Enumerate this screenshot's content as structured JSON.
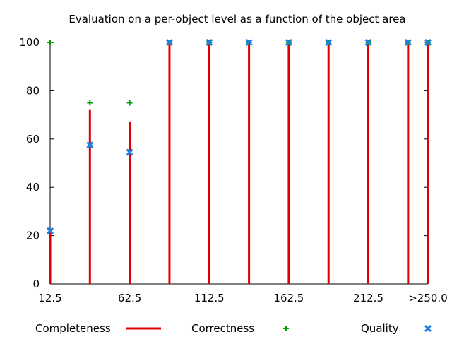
{
  "chart_data": {
    "type": "bar",
    "title": "Evaluation on a per-object level as a function of the object area",
    "x": [
      12.5,
      37.5,
      62.5,
      87.5,
      112.5,
      137.5,
      162.5,
      187.5,
      212.5,
      237.5,
      250
    ],
    "x_tick_labels": [
      {
        "x": 12.5,
        "label": "12.5"
      },
      {
        "x": 62.5,
        "label": "62.5"
      },
      {
        "x": 112.5,
        "label": "112.5"
      },
      {
        "x": 162.5,
        "label": "162.5"
      },
      {
        "x": 212.5,
        "label": "212.5"
      },
      {
        "x": 250,
        "label": ">250.0"
      }
    ],
    "y_ticks": [
      0,
      20,
      40,
      60,
      80,
      100
    ],
    "xlim": [
      12.5,
      250
    ],
    "ylim": [
      0,
      100
    ],
    "grid": false,
    "legend_position": "bottom",
    "series": [
      {
        "name": "Completeness",
        "kind": "impulse",
        "color": "#e00000",
        "values": [
          22,
          72,
          67,
          100,
          100,
          100,
          100,
          100,
          100,
          100,
          100
        ]
      },
      {
        "name": "Correctness",
        "kind": "point-plus",
        "color": "#00a000",
        "values": [
          100,
          75,
          75,
          100,
          100,
          100,
          100,
          100,
          100,
          100,
          100
        ]
      },
      {
        "name": "Quality",
        "kind": "point-x",
        "color": "#1e7fe0",
        "values": [
          22,
          57.5,
          54.5,
          100,
          100,
          100,
          100,
          100,
          100,
          100,
          100
        ]
      }
    ]
  }
}
